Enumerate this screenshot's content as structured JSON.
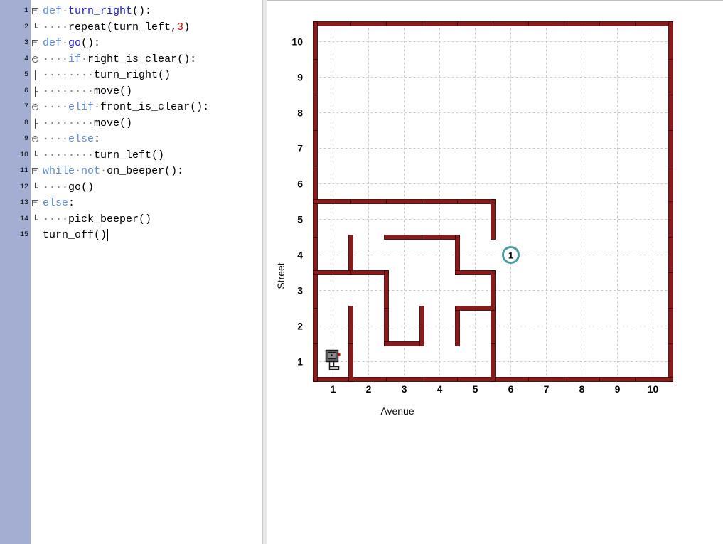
{
  "editor": {
    "lines": [
      {
        "num": "1",
        "fold": "box",
        "tokens": [
          [
            "kw",
            "def"
          ],
          [
            "dot",
            "·"
          ],
          [
            "fn",
            "turn_right"
          ],
          [
            "plain",
            "():"
          ]
        ]
      },
      {
        "num": "2",
        "fold": "end",
        "tokens": [
          [
            "dot",
            "····"
          ],
          [
            "plain",
            "repeat(turn_left,"
          ],
          [
            "num",
            "3"
          ],
          [
            "plain",
            ")"
          ]
        ]
      },
      {
        "num": "3",
        "fold": "box",
        "tokens": [
          [
            "kw",
            "def"
          ],
          [
            "dot",
            "·"
          ],
          [
            "fn",
            "go"
          ],
          [
            "plain",
            "():"
          ]
        ]
      },
      {
        "num": "4",
        "fold": "circ",
        "tokens": [
          [
            "dot",
            "····"
          ],
          [
            "kw",
            "if"
          ],
          [
            "dot",
            "·"
          ],
          [
            "plain",
            "right_is_clear():"
          ]
        ]
      },
      {
        "num": "5",
        "fold": "bar",
        "tokens": [
          [
            "dot",
            "········"
          ],
          [
            "plain",
            "turn_right()"
          ]
        ]
      },
      {
        "num": "6",
        "fold": "tee",
        "tokens": [
          [
            "dot",
            "········"
          ],
          [
            "plain",
            "move()"
          ]
        ]
      },
      {
        "num": "7",
        "fold": "circ",
        "tokens": [
          [
            "dot",
            "····"
          ],
          [
            "kw",
            "elif"
          ],
          [
            "dot",
            "·"
          ],
          [
            "plain",
            "front_is_clear():"
          ]
        ]
      },
      {
        "num": "8",
        "fold": "tee",
        "tokens": [
          [
            "dot",
            "········"
          ],
          [
            "plain",
            "move()"
          ]
        ]
      },
      {
        "num": "9",
        "fold": "circ",
        "tokens": [
          [
            "dot",
            "····"
          ],
          [
            "kw",
            "else"
          ],
          [
            "plain",
            ":"
          ]
        ]
      },
      {
        "num": "10",
        "fold": "end",
        "tokens": [
          [
            "dot",
            "········"
          ],
          [
            "plain",
            "turn_left()"
          ]
        ]
      },
      {
        "num": "11",
        "fold": "box",
        "tokens": [
          [
            "kw",
            "while"
          ],
          [
            "dot",
            "·"
          ],
          [
            "kw",
            "not"
          ],
          [
            "dot",
            "·"
          ],
          [
            "plain",
            "on_beeper():"
          ]
        ]
      },
      {
        "num": "12",
        "fold": "end",
        "tokens": [
          [
            "dot",
            "····"
          ],
          [
            "plain",
            "go()"
          ]
        ]
      },
      {
        "num": "13",
        "fold": "box",
        "tokens": [
          [
            "kw",
            "else"
          ],
          [
            "plain",
            ":"
          ]
        ]
      },
      {
        "num": "14",
        "fold": "end",
        "tokens": [
          [
            "dot",
            "····"
          ],
          [
            "plain",
            "pick_beeper()"
          ]
        ]
      },
      {
        "num": "15",
        "fold": "none",
        "tokens": [
          [
            "plain",
            "turn_off()"
          ]
        ],
        "caret": true
      }
    ]
  },
  "world": {
    "avenues": [
      "1",
      "2",
      "3",
      "4",
      "5",
      "6",
      "7",
      "8",
      "9",
      "10"
    ],
    "streets": [
      "1",
      "2",
      "3",
      "4",
      "5",
      "6",
      "7",
      "8",
      "9",
      "10"
    ],
    "xlabel": "Avenue",
    "ylabel": "Street",
    "beeper": {
      "avenue": 6,
      "street": 4,
      "count": "1"
    },
    "robot": {
      "avenue": 1,
      "street": 1,
      "facing": "east"
    },
    "colors": {
      "wall": "#8b1a1a",
      "wall_edge": "#2a0000",
      "grid": "#c8c8c8",
      "beeper": "#4a9c9c"
    },
    "walls": [
      [
        [
          0.5,
          5.5
        ],
        [
          5.5,
          5.5
        ]
      ],
      [
        [
          5.5,
          5.5
        ],
        [
          5.5,
          4.5
        ]
      ],
      [
        [
          2.5,
          4.5
        ],
        [
          4.5,
          4.5
        ]
      ],
      [
        [
          4.5,
          4.5
        ],
        [
          4.5,
          3.5
        ]
      ],
      [
        [
          4.5,
          3.5
        ],
        [
          5.5,
          3.5
        ]
      ],
      [
        [
          5.5,
          3.5
        ],
        [
          5.5,
          0.5
        ]
      ],
      [
        [
          1.5,
          4.5
        ],
        [
          1.5,
          3.5
        ]
      ],
      [
        [
          0.5,
          3.5
        ],
        [
          2.5,
          3.5
        ]
      ],
      [
        [
          2.5,
          3.5
        ],
        [
          2.5,
          1.5
        ]
      ],
      [
        [
          2.5,
          1.5
        ],
        [
          3.5,
          1.5
        ]
      ],
      [
        [
          3.5,
          1.5
        ],
        [
          3.5,
          2.5
        ]
      ],
      [
        [
          4.5,
          2.5
        ],
        [
          4.5,
          1.5
        ]
      ],
      [
        [
          4.5,
          2.5
        ],
        [
          5.5,
          2.5
        ]
      ],
      [
        [
          1.5,
          2.5
        ],
        [
          1.5,
          0.5
        ]
      ]
    ]
  }
}
